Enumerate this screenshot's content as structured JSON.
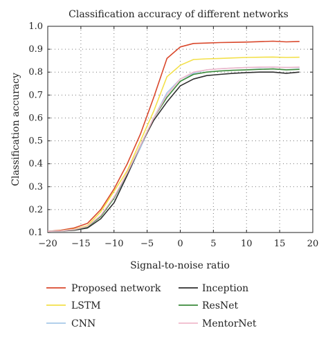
{
  "chart_data": {
    "type": "line",
    "title": "Classification accuracy of different networks",
    "xlabel": "Signal-to-noise ratio",
    "ylabel": "Classification accuracy",
    "xlim": [
      -20,
      20
    ],
    "ylim": [
      0.1,
      1.0
    ],
    "xticks": [
      "−20",
      "−15",
      "−10",
      "−5",
      "0",
      "5",
      "10",
      "15",
      "20"
    ],
    "yticks": [
      "0.1",
      "0.2",
      "0.3",
      "0.4",
      "0.5",
      "0.6",
      "0.7",
      "0.8",
      "0.9",
      "1.0"
    ],
    "grid": true,
    "legend_position": "below",
    "x": [
      -20,
      -18,
      -16,
      -14,
      -12,
      -10,
      -8,
      -6,
      -4,
      -2,
      0,
      2,
      4,
      6,
      8,
      10,
      12,
      14,
      16,
      18
    ],
    "series": [
      {
        "name": "Proposed network",
        "color": "#d9472b",
        "values": [
          0.105,
          0.11,
          0.12,
          0.14,
          0.2,
          0.29,
          0.4,
          0.53,
          0.69,
          0.86,
          0.91,
          0.925,
          0.927,
          0.929,
          0.93,
          0.931,
          0.933,
          0.935,
          0.932,
          0.934
        ]
      },
      {
        "name": "LSTM",
        "color": "#f3e04a",
        "values": [
          0.105,
          0.108,
          0.115,
          0.13,
          0.19,
          0.28,
          0.37,
          0.5,
          0.63,
          0.78,
          0.83,
          0.855,
          0.858,
          0.86,
          0.862,
          0.864,
          0.865,
          0.866,
          0.864,
          0.865
        ]
      },
      {
        "name": "CNN",
        "color": "#a6c8e8",
        "values": [
          0.105,
          0.107,
          0.113,
          0.125,
          0.17,
          0.25,
          0.35,
          0.47,
          0.6,
          0.71,
          0.77,
          0.795,
          0.81,
          0.815,
          0.818,
          0.82,
          0.82,
          0.822,
          0.82,
          0.82
        ]
      },
      {
        "name": "Inception",
        "color": "#2e2e2e",
        "values": [
          0.105,
          0.106,
          0.11,
          0.12,
          0.16,
          0.23,
          0.35,
          0.48,
          0.59,
          0.67,
          0.74,
          0.77,
          0.785,
          0.79,
          0.795,
          0.798,
          0.8,
          0.8,
          0.795,
          0.8
        ]
      },
      {
        "name": "ResNet",
        "color": "#3a8a3a",
        "values": [
          0.105,
          0.107,
          0.112,
          0.125,
          0.17,
          0.25,
          0.36,
          0.48,
          0.6,
          0.69,
          0.76,
          0.79,
          0.8,
          0.805,
          0.808,
          0.81,
          0.812,
          0.814,
          0.81,
          0.812
        ]
      },
      {
        "name": "MentorNet",
        "color": "#f0b9cc",
        "values": [
          0.105,
          0.107,
          0.113,
          0.127,
          0.175,
          0.255,
          0.36,
          0.48,
          0.6,
          0.7,
          0.77,
          0.8,
          0.81,
          0.815,
          0.818,
          0.82,
          0.822,
          0.822,
          0.82,
          0.822
        ]
      }
    ]
  }
}
